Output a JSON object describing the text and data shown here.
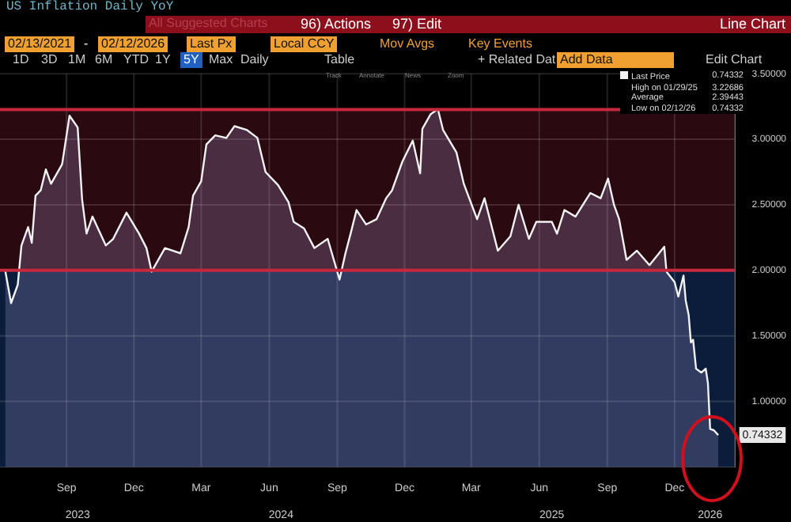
{
  "chart_data": {
    "type": "area",
    "title": "US Inflation Daily YoY",
    "x": [
      "2023-06-24",
      "2023-07-02",
      "2023-07-11",
      "2023-07-16",
      "2023-07-25",
      "2023-07-30",
      "2023-08-04",
      "2023-08-11",
      "2023-08-18",
      "2023-08-25",
      "2023-09-09",
      "2023-09-19",
      "2023-09-30",
      "2023-10-06",
      "2023-10-12",
      "2023-10-20",
      "2023-11-07",
      "2023-11-17",
      "2023-12-05",
      "2023-12-22",
      "2024-01-01",
      "2024-01-08",
      "2024-01-26",
      "2024-02-16",
      "2024-02-27",
      "2024-03-04",
      "2024-03-15",
      "2024-03-22",
      "2024-04-03",
      "2024-04-18",
      "2024-04-29",
      "2024-05-16",
      "2024-05-30",
      "2024-06-10",
      "2024-06-27",
      "2024-07-11",
      "2024-07-18",
      "2024-08-01",
      "2024-08-15",
      "2024-09-02",
      "2024-09-18",
      "2024-09-26",
      "2024-10-03",
      "2024-10-11",
      "2024-10-24",
      "2024-11-07",
      "2024-11-20",
      "2024-11-28",
      "2024-12-12",
      "2024-12-26",
      "2025-01-05",
      "2025-01-08",
      "2025-01-19",
      "2025-01-29",
      "2025-02-05",
      "2025-02-23",
      "2025-03-05",
      "2025-03-23",
      "2025-04-02",
      "2025-04-20",
      "2025-05-07",
      "2025-05-18",
      "2025-06-01",
      "2025-06-11",
      "2025-07-02",
      "2025-07-09",
      "2025-07-19",
      "2025-08-03",
      "2025-08-23",
      "2025-09-06",
      "2025-09-16",
      "2025-09-24",
      "2025-10-01",
      "2025-10-11",
      "2025-10-25",
      "2025-11-11",
      "2025-12-01",
      "2025-12-04",
      "2025-12-15",
      "2025-12-20",
      "2025-12-27",
      "2025-12-30",
      "2026-01-03",
      "2026-01-06",
      "2026-01-09",
      "2026-01-13",
      "2026-01-20",
      "2026-01-26",
      "2026-01-29",
      "2026-02-01",
      "2026-02-06",
      "2026-02-12"
    ],
    "series": [
      {
        "name": "Last Price",
        "color": "#f2f2f2",
        "values": [
          2.0,
          1.75,
          1.89,
          2.19,
          2.33,
          2.21,
          2.57,
          2.61,
          2.77,
          2.66,
          2.81,
          3.18,
          3.09,
          2.54,
          2.28,
          2.41,
          2.19,
          2.24,
          2.44,
          2.28,
          2.17,
          1.99,
          2.17,
          2.13,
          2.33,
          2.57,
          2.68,
          2.96,
          3.03,
          3.01,
          3.1,
          3.07,
          3.01,
          2.75,
          2.65,
          2.52,
          2.37,
          2.32,
          2.17,
          2.24,
          1.93,
          2.13,
          2.28,
          2.46,
          2.35,
          2.39,
          2.55,
          2.61,
          2.83,
          2.99,
          2.74,
          3.08,
          3.19,
          3.23,
          3.07,
          2.9,
          2.66,
          2.39,
          2.55,
          2.15,
          2.26,
          2.5,
          2.24,
          2.37,
          2.37,
          2.28,
          2.46,
          2.41,
          2.59,
          2.55,
          2.7,
          2.5,
          2.39,
          2.08,
          2.15,
          2.04,
          2.18,
          1.99,
          1.91,
          1.8,
          1.96,
          1.77,
          1.66,
          1.45,
          1.47,
          1.25,
          1.22,
          1.25,
          1.14,
          0.79,
          0.78,
          0.74332
        ]
      }
    ],
    "xlim": [
      "2023-06-17",
      "2026-03-06"
    ],
    "xticks": [
      {
        "value": "2023-09-15",
        "label": "Sep"
      },
      {
        "value": "2023-12-15",
        "label": "Dec"
      },
      {
        "value": "2024-03-15",
        "label": "Mar"
      },
      {
        "value": "2024-06-15",
        "label": "Jun"
      },
      {
        "value": "2024-09-15",
        "label": "Sep"
      },
      {
        "value": "2024-12-15",
        "label": "Dec"
      },
      {
        "value": "2025-03-15",
        "label": "Mar"
      },
      {
        "value": "2025-06-15",
        "label": "Jun"
      },
      {
        "value": "2025-09-15",
        "label": "Sep"
      },
      {
        "value": "2025-12-15",
        "label": "Dec"
      }
    ],
    "x2lim": [
      "2023-06-17",
      "2026-03-06"
    ],
    "x2ticks": [
      {
        "value": "2023-09-30",
        "label": "2023"
      },
      {
        "value": "2024-07-01",
        "label": "2024"
      },
      {
        "value": "2025-07-02",
        "label": "2025"
      },
      {
        "value": "2026-02-01",
        "label": "2026"
      }
    ],
    "ylim": [
      0.5,
      3.5
    ],
    "yticks": [
      {
        "value": 1,
        "label": "1.00000"
      },
      {
        "value": 1.5,
        "label": "1.50000"
      },
      {
        "value": 2,
        "label": "2.00000"
      },
      {
        "value": 2.5,
        "label": "2.50000"
      },
      {
        "value": 3,
        "label": "3.00000"
      },
      {
        "value": 3.5,
        "label": "3.50000"
      }
    ],
    "ref_lines": [
      {
        "axis": "y",
        "value": 3.22686,
        "color": "#c8283c"
      },
      {
        "axis": "y",
        "value": 2.0,
        "color": "#c8283c"
      }
    ],
    "bands": [
      {
        "axis": "y",
        "from": 2.0,
        "to": 3.22686,
        "color": "#2a0a10"
      },
      {
        "axis": "y",
        "from": 0.5,
        "to": 2.0,
        "color": "#0b1d3a"
      }
    ],
    "grid": true,
    "legend": "top right",
    "marker": "none",
    "line_style": "solid",
    "annotations": [
      {
        "text": "0.74332",
        "x": "2026-02-12",
        "y": 0.74332
      },
      "0.74332",
      "High on 01/29/25",
      "3.22686",
      "Average",
      "2.39443",
      "Low on 02/12/26",
      "0.74332",
      "All Suggested Charts",
      "96) Actions",
      "97) Edit",
      "Line Chart",
      "02/13/2021",
      "-",
      "02/12/2026",
      "Last Px",
      "Local CCY",
      "Mov Avgs",
      "Key Events",
      "1D",
      "3D",
      "1M",
      "6M",
      "YTD",
      "1Y",
      "5Y",
      "Max",
      "Daily",
      "Table",
      "+ Related Dat",
      "Add Data",
      "Edit Chart",
      "Track",
      "Annotate",
      "News",
      "Zoom"
    ]
  }
}
